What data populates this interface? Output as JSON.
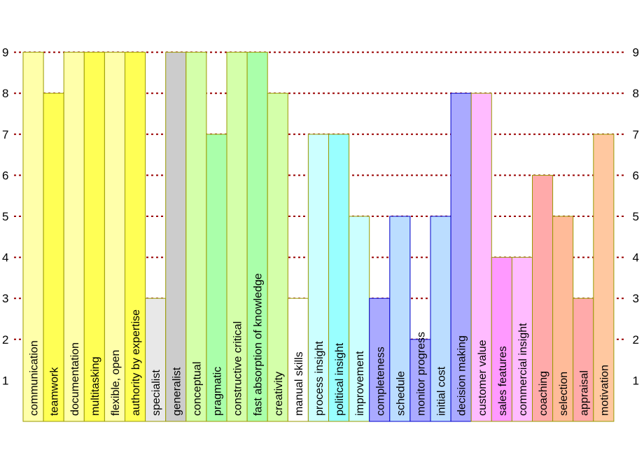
{
  "chart_data": {
    "type": "bar",
    "title": "",
    "xlabel": "",
    "ylabel": "",
    "ylim": [
      0,
      9
    ],
    "yticks": [
      1,
      2,
      3,
      4,
      5,
      6,
      7,
      8,
      9
    ],
    "grid": "dotted horizontal lines at 2..9",
    "categories": [
      "communication",
      "teamwork",
      "documentation",
      "multitasking",
      "flexible, open",
      "authority by expertise",
      "specialist",
      "generalist",
      "conceptual",
      "pragmatic",
      "constructive critical",
      "fast absorption of knowledge",
      "creativity",
      "manual skills",
      "process insight",
      "political insight",
      "improvement",
      "completeness",
      "schedule",
      "monitor progress",
      "initial cost",
      "decision making",
      "customer value",
      "sales features",
      "commercial insight",
      "coaching",
      "selection",
      "appraisal",
      "motivation"
    ],
    "values": [
      9,
      8,
      9,
      9,
      9,
      9,
      3,
      9,
      9,
      7,
      9,
      9,
      8,
      3,
      7,
      7,
      5,
      3,
      5,
      2,
      5,
      8,
      8,
      4,
      4,
      6,
      5,
      3,
      7
    ],
    "colors": [
      "#ffffaa",
      "#ffff55",
      "#ffffaa",
      "#ffff55",
      "#ffffaa",
      "#ffff55",
      "#e8e8e8",
      "#cccccc",
      "#d4ffaa",
      "#aaffaa",
      "#d4ffaa",
      "#aaffaa",
      "#d4ffaa",
      "#ffffff",
      "#ccffff",
      "#99ffff",
      "#ccffff",
      "#aaaaff",
      "#bbddff",
      "#aaaaff",
      "#bbddff",
      "#aaaaff",
      "#ffbbff",
      "#ff99ff",
      "#ffbbff",
      "#ffaaaa",
      "#ffbb99",
      "#ffaaaa",
      "#ffc8a0"
    ],
    "borders": [
      "#999900",
      "#999900",
      "#999900",
      "#999900",
      "#999900",
      "#999900",
      "#999900",
      "#999900",
      "#999900",
      "#999900",
      "#999900",
      "#999900",
      "#999900",
      "#999900",
      "#999900",
      "#999900",
      "#999900",
      "#0000cc",
      "#0000cc",
      "#0000cc",
      "#0000cc",
      "#0000cc",
      "#999900",
      "#999900",
      "#999900",
      "#999900",
      "#999900",
      "#999900",
      "#999900"
    ],
    "gridline_color": "#990000"
  }
}
